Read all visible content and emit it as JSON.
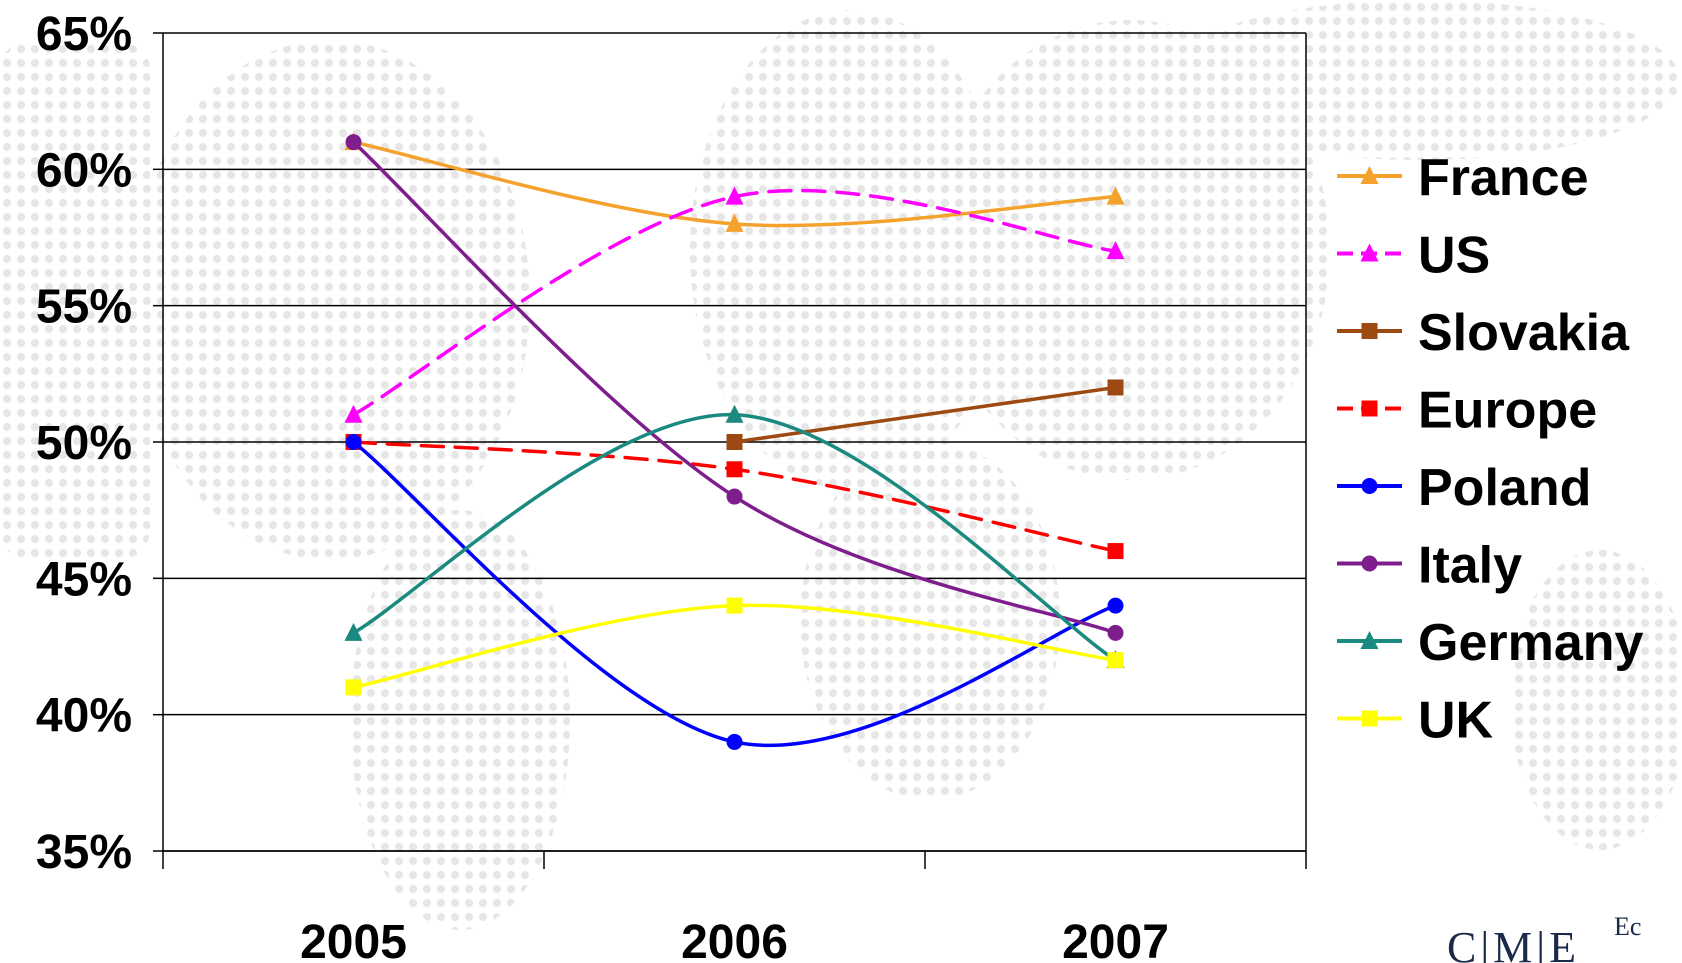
{
  "chart_data": {
    "type": "line",
    "categories": [
      "2005",
      "2006",
      "2007"
    ],
    "y_ticks": [
      "35%",
      "40%",
      "45%",
      "50%",
      "55%",
      "60%",
      "65%"
    ],
    "ylim": [
      35,
      65
    ],
    "grid": true,
    "legend_position": "right",
    "series": [
      {
        "name": "France",
        "values": [
          61,
          58,
          59
        ],
        "color": "#F5A22D",
        "marker": "triangle",
        "dash": false
      },
      {
        "name": "US",
        "values": [
          51,
          59,
          57
        ],
        "color": "#FF00FF",
        "marker": "triangle",
        "dash": true
      },
      {
        "name": "Slovakia",
        "values": [
          null,
          50,
          52
        ],
        "color": "#9C4A12",
        "marker": "square",
        "dash": false
      },
      {
        "name": "Europe",
        "values": [
          50,
          49,
          46
        ],
        "color": "#FF0000",
        "marker": "square",
        "dash": true
      },
      {
        "name": "Poland",
        "values": [
          50,
          39,
          44
        ],
        "color": "#0000FF",
        "marker": "circle",
        "dash": false
      },
      {
        "name": "Italy",
        "values": [
          61,
          48,
          43
        ],
        "color": "#7E1E8C",
        "marker": "circle",
        "dash": false
      },
      {
        "name": "Germany",
        "values": [
          43,
          51,
          42
        ],
        "color": "#1A8A80",
        "marker": "triangle",
        "dash": false
      },
      {
        "name": "UK",
        "values": [
          41,
          44,
          42
        ],
        "color": "#FFFF00",
        "marker": "square",
        "dash": false
      }
    ]
  },
  "logo": {
    "text": "C|M|E",
    "suffix": "Ec"
  }
}
